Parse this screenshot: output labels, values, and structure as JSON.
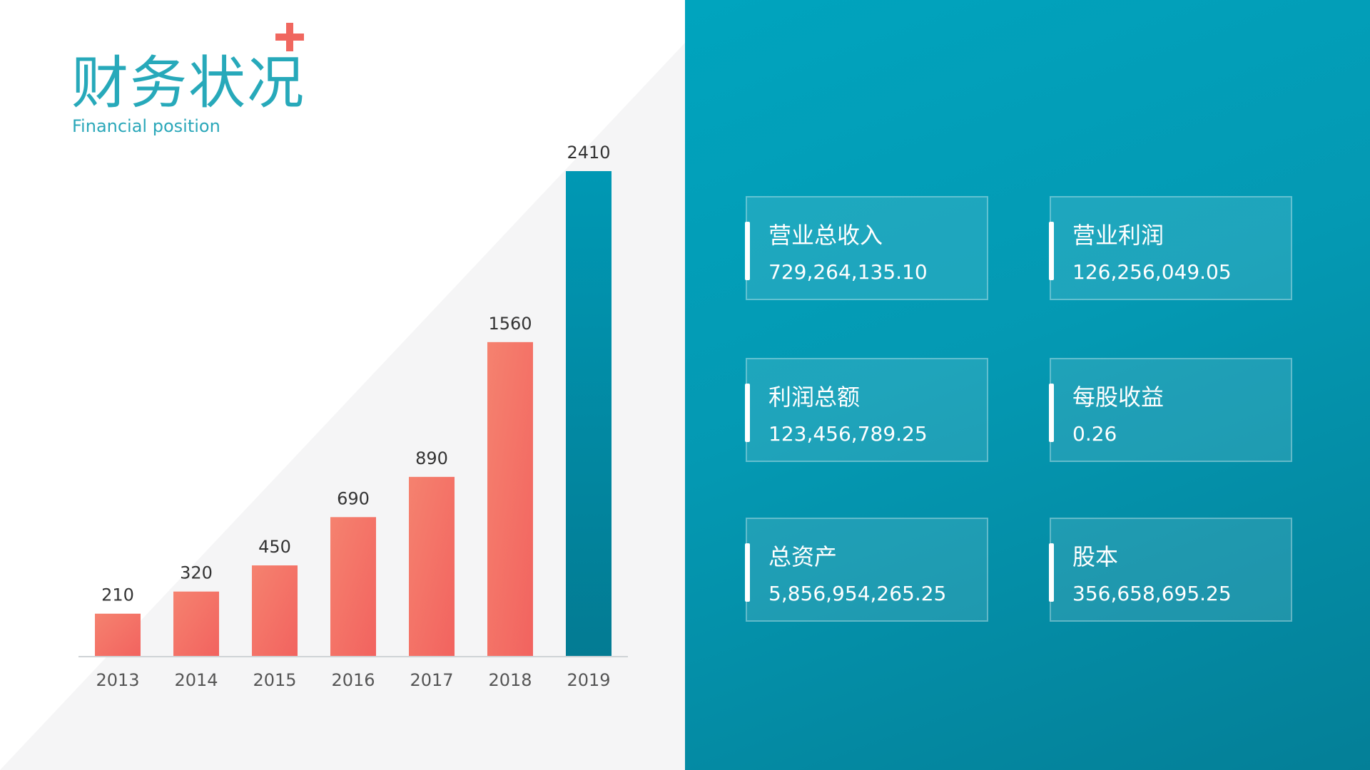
{
  "header": {
    "title": "财务状况",
    "subtitle": "Financial position"
  },
  "colors": {
    "title": "#27a9ba",
    "accent_plus": "#f0675f",
    "bar_coral_top": "#f5826f",
    "bar_coral_bottom": "#f2635f",
    "bar_teal_top": "#0098b4",
    "bar_teal_bottom": "#037b93",
    "panel_teal": "#0499b3"
  },
  "chart_data": {
    "type": "bar",
    "categories": [
      "2013",
      "2014",
      "2015",
      "2016",
      "2017",
      "2018",
      "2019"
    ],
    "values": [
      210,
      320,
      450,
      690,
      890,
      1560,
      2410
    ],
    "highlight_index": 6,
    "ylim": [
      0,
      2410
    ],
    "title": "",
    "xlabel": "",
    "ylabel": "",
    "grid": false,
    "data_labels": true
  },
  "stats": [
    {
      "label": "营业总收入",
      "value": "729,264,135.10"
    },
    {
      "label": "营业利润",
      "value": "126,256,049.05"
    },
    {
      "label": "利润总额",
      "value": "123,456,789.25"
    },
    {
      "label": "每股收益",
      "value": "0.26"
    },
    {
      "label": "总资产",
      "value": "5,856,954,265.25"
    },
    {
      "label": "股本",
      "value": "356,658,695.25"
    }
  ]
}
